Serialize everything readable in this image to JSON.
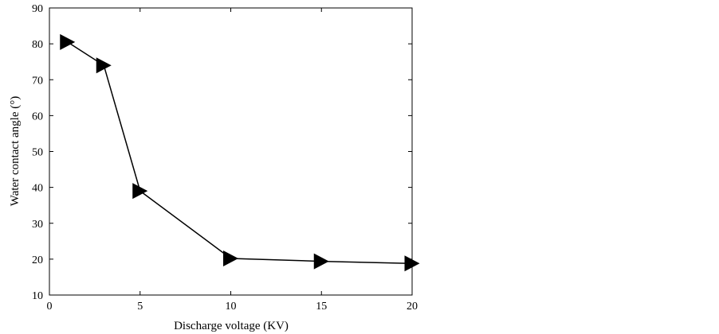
{
  "chart_data": {
    "type": "line",
    "title": "",
    "xlabel": "Discharge voltage (KV)",
    "ylabel": "Water contact angle (°)",
    "xlim": [
      0,
      20
    ],
    "ylim": [
      10,
      90
    ],
    "xticks": [
      0,
      5,
      10,
      15,
      20
    ],
    "yticks": [
      10,
      20,
      30,
      40,
      50,
      60,
      70,
      80,
      90
    ],
    "grid": false,
    "legend": "none",
    "marker": "triangle-right",
    "series": [
      {
        "x": [
          1,
          3,
          5,
          10,
          15,
          20
        ],
        "values": [
          80.5,
          74,
          39,
          20.2,
          19.4,
          18.8
        ],
        "color": "#000000"
      }
    ]
  }
}
